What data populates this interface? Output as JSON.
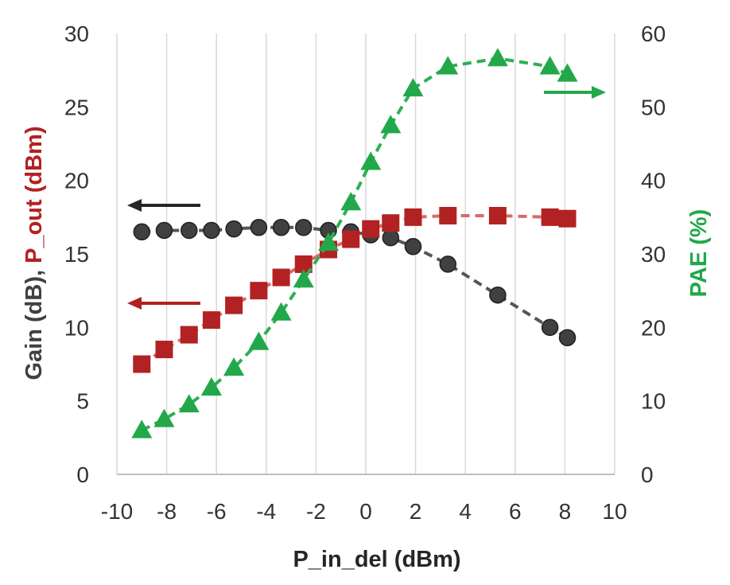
{
  "chart_data": {
    "type": "scatter",
    "xlabel": "P_in_del (dBm)",
    "ylabel_left": {
      "parts": [
        {
          "text": "Gain (dB), ",
          "color": "#404040"
        },
        {
          "text": "P_out (dBm)",
          "color": "#b22222"
        }
      ]
    },
    "ylabel_right": {
      "text": "PAE (%)",
      "color": "#22a84a"
    },
    "xlim": [
      -10,
      10
    ],
    "ylim_left": [
      0,
      30
    ],
    "ylim_right": [
      0,
      60
    ],
    "x_ticks": [
      -10,
      -8,
      -6,
      -4,
      -2,
      0,
      2,
      4,
      6,
      8,
      10
    ],
    "y_left_ticks": [
      0,
      5,
      10,
      15,
      20,
      25,
      30
    ],
    "y_right_ticks": [
      0,
      10,
      20,
      30,
      40,
      50,
      60
    ],
    "grid": "vertical",
    "series": [
      {
        "axis": "left",
        "marker": "circle",
        "color": "#404040",
        "line": "dashed",
        "x": [
          -9,
          -8.1,
          -7.1,
          -6.2,
          -5.3,
          -4.3,
          -3.4,
          -2.5,
          -1.5,
          -0.6,
          0.2,
          1.0,
          1.9,
          3.3,
          5.3,
          7.4,
          8.1
        ],
        "y": [
          16.5,
          16.6,
          16.6,
          16.6,
          16.7,
          16.8,
          16.8,
          16.8,
          16.6,
          16.5,
          16.3,
          16.1,
          15.5,
          14.3,
          12.2,
          10.0,
          9.3
        ]
      },
      {
        "axis": "left",
        "marker": "square",
        "color": "#b22222",
        "line": "dashed",
        "x": [
          -9,
          -8.1,
          -7.1,
          -6.2,
          -5.3,
          -4.3,
          -3.4,
          -2.5,
          -1.5,
          -0.6,
          0.2,
          1.0,
          1.9,
          3.3,
          5.3,
          7.4,
          8.1
        ],
        "y": [
          7.5,
          8.5,
          9.5,
          10.5,
          11.5,
          12.5,
          13.4,
          14.3,
          15.3,
          16.0,
          16.7,
          17.1,
          17.5,
          17.6,
          17.6,
          17.5,
          17.4
        ]
      },
      {
        "axis": "right",
        "marker": "triangle",
        "color": "#22a84a",
        "line": "dashed",
        "x": [
          -9,
          -8.1,
          -7.1,
          -6.2,
          -5.3,
          -4.3,
          -3.4,
          -2.5,
          -1.5,
          -0.6,
          0.2,
          1.0,
          1.9,
          3.3,
          5.3,
          7.4,
          8.1
        ],
        "y": [
          6,
          7.5,
          9.5,
          11.8,
          14.5,
          18,
          22,
          26.5,
          31.5,
          37,
          42.5,
          47.5,
          52.5,
          55.5,
          56.6,
          55.5,
          54.5
        ]
      }
    ],
    "annotations": [
      {
        "shape": "arrow-left",
        "color": "#262626",
        "series_index": 0
      },
      {
        "shape": "arrow-left",
        "color": "#b22222",
        "series_index": 1
      },
      {
        "shape": "arrow-right",
        "color": "#22a84a",
        "series_index": 2
      }
    ]
  }
}
